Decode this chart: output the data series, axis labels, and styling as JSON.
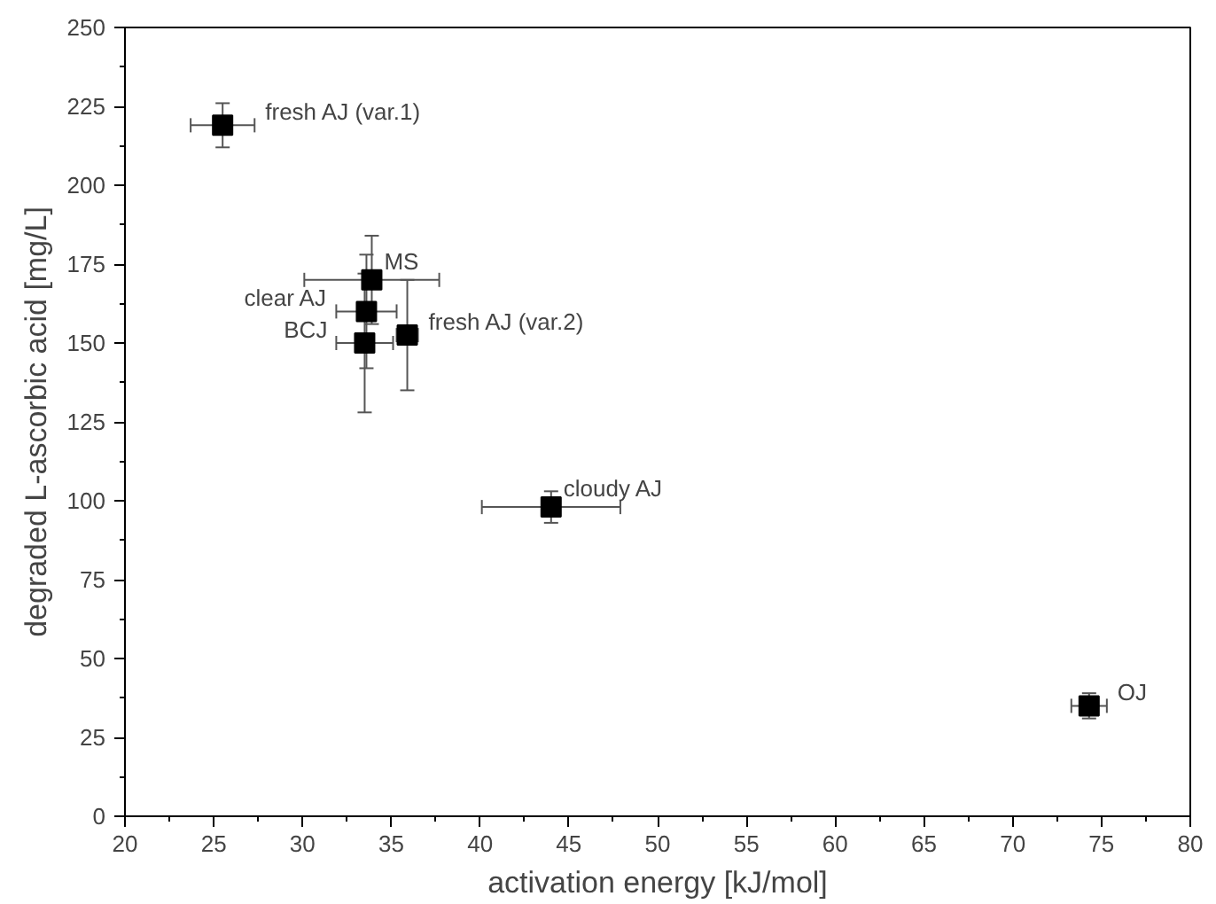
{
  "chart_data": {
    "type": "scatter",
    "xlabel": "activation energy [kJ/mol]",
    "ylabel": "degraded L-ascorbic acid [mg/L]",
    "x": [
      25.5,
      33.9,
      33.6,
      33.5,
      35.9,
      44.0,
      74.3
    ],
    "values": [
      219,
      170,
      160,
      150,
      152.5,
      98,
      35
    ],
    "errors": [
      7,
      14,
      18,
      22,
      17.5,
      5,
      4
    ],
    "xerrors": [
      1.8,
      3.8,
      1.7,
      1.6,
      0.6,
      3.9,
      1.0
    ],
    "color": "#000000",
    "marker": "square",
    "grid": false,
    "xlim": [
      20,
      80
    ],
    "xticks": [
      20,
      25,
      30,
      35,
      40,
      45,
      50,
      55,
      60,
      65,
      70,
      75,
      80
    ],
    "ylim": [
      0,
      250
    ],
    "yticks": [
      0,
      25,
      50,
      75,
      100,
      125,
      150,
      175,
      200,
      225,
      250
    ],
    "annotations": [
      {
        "text": "fresh AJ (var.1)",
        "x": 25.5,
        "y": 219
      },
      {
        "text": "MS",
        "x": 33.9,
        "y": 170
      },
      {
        "text": "clear AJ",
        "x": 33.6,
        "y": 160
      },
      {
        "text": "BCJ",
        "x": 33.5,
        "y": 150
      },
      {
        "text": "fresh AJ (var.2)",
        "x": 35.9,
        "y": 152.5
      },
      {
        "text": "cloudy AJ",
        "x": 44.0,
        "y": 98
      },
      {
        "text": "OJ",
        "x": 74.3,
        "y": 35
      }
    ]
  }
}
